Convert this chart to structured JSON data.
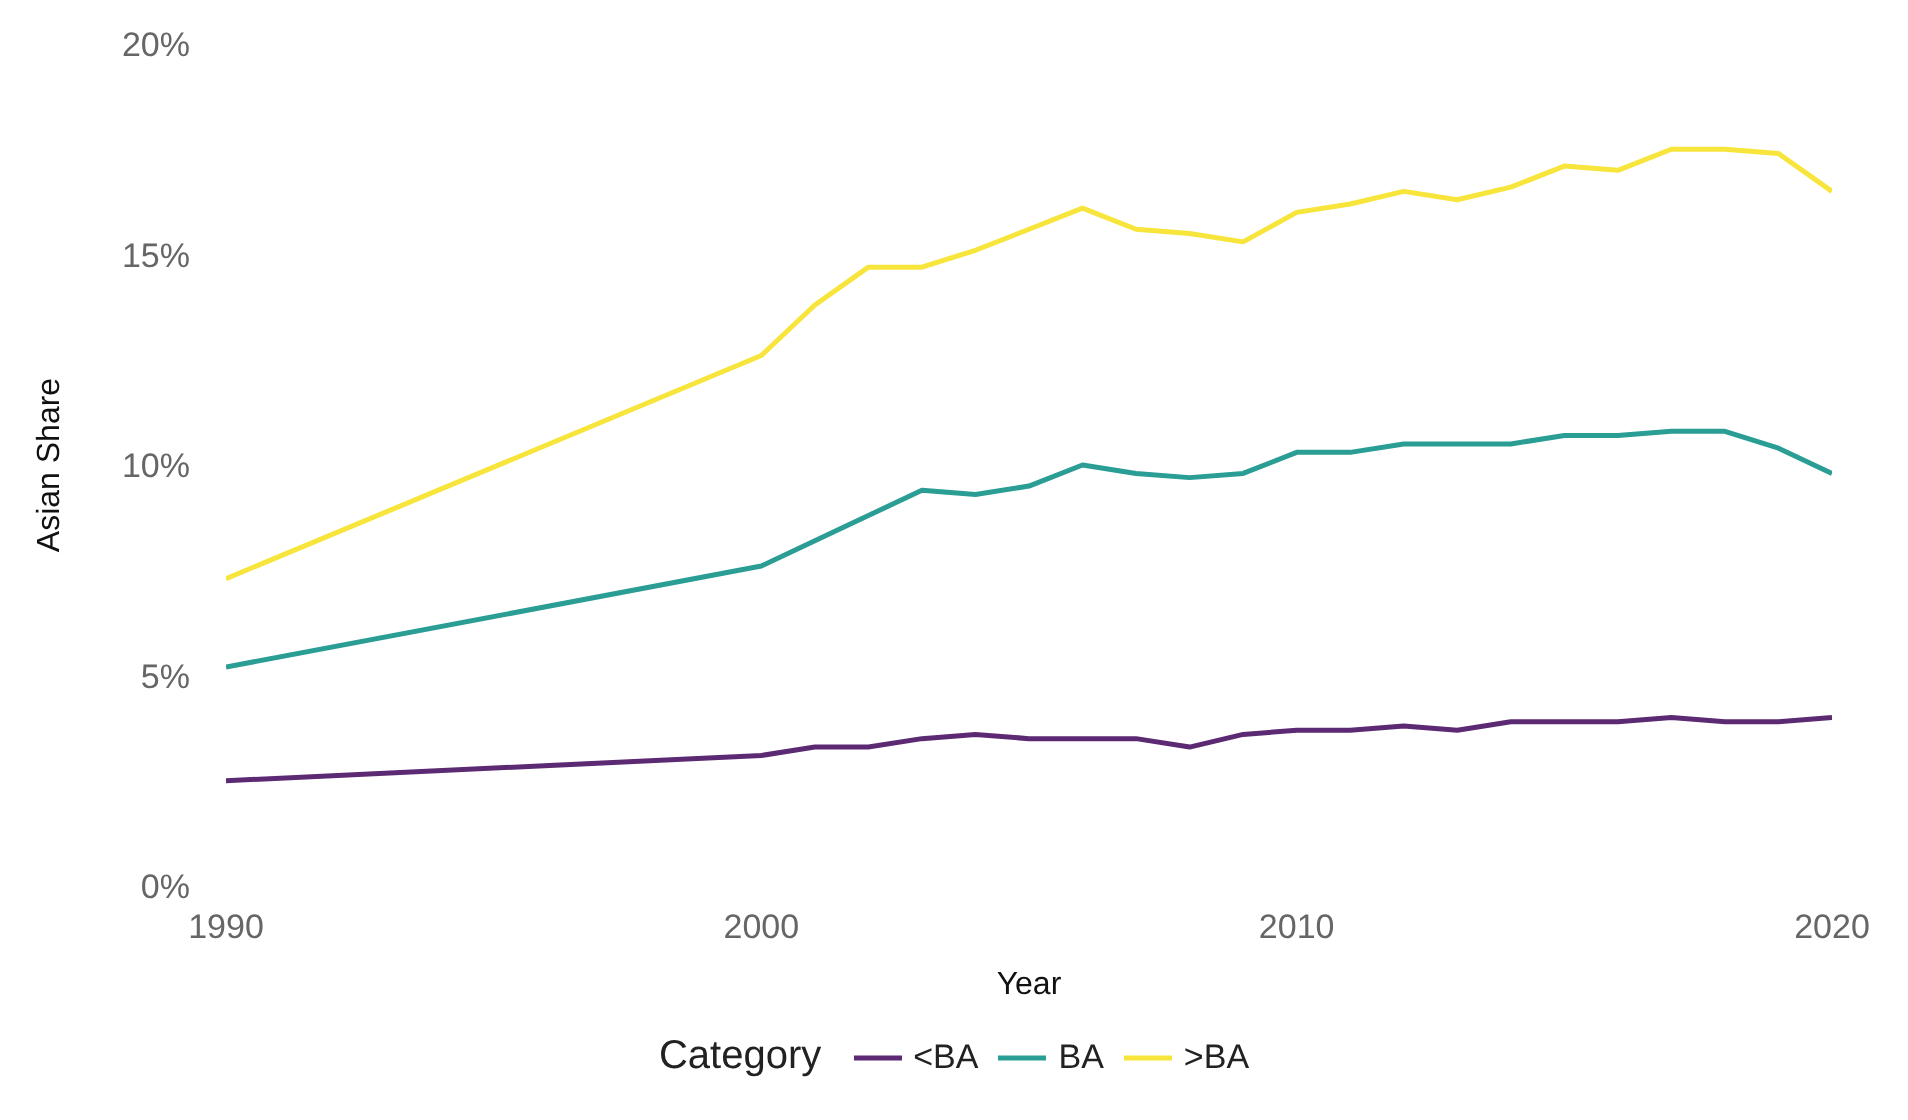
{
  "chart_data": {
    "type": "line",
    "xlabel": "Year",
    "ylabel": "Asian Share",
    "legend_title": "Category",
    "legend": "bottom",
    "grid": false,
    "line_style": "solid",
    "marker": "none",
    "x": [
      1990,
      2000,
      2001,
      2002,
      2003,
      2004,
      2005,
      2006,
      2007,
      2008,
      2009,
      2010,
      2011,
      2012,
      2013,
      2014,
      2015,
      2016,
      2017,
      2018,
      2019,
      2020
    ],
    "xlim": [
      1990,
      2020
    ],
    "xticks": [
      1990,
      2000,
      2010,
      2020
    ],
    "ylim": [
      0,
      20
    ],
    "yticks": [
      {
        "value": 0,
        "label": "0%"
      },
      {
        "value": 5,
        "label": "5%"
      },
      {
        "value": 10,
        "label": "10%"
      },
      {
        "value": 15,
        "label": "15%"
      },
      {
        "value": 20,
        "label": "20%"
      }
    ],
    "series": [
      {
        "name": "<BA",
        "color": "#5c2a73",
        "values": [
          2.5,
          3.1,
          3.3,
          3.3,
          3.5,
          3.6,
          3.5,
          3.5,
          3.5,
          3.3,
          3.6,
          3.7,
          3.7,
          3.8,
          3.7,
          3.9,
          3.9,
          3.9,
          4.0,
          3.9,
          3.9,
          4.0
        ]
      },
      {
        "name": "BA",
        "color": "#2a9d94",
        "values": [
          5.2,
          7.6,
          8.2,
          8.8,
          9.4,
          9.3,
          9.5,
          10.0,
          9.8,
          9.7,
          9.8,
          10.3,
          10.3,
          10.5,
          10.5,
          10.5,
          10.7,
          10.7,
          10.8,
          10.8,
          10.4,
          9.8
        ]
      },
      {
        "name": ">BA",
        "color": "#f7e53b",
        "values": [
          7.3,
          12.6,
          13.8,
          14.7,
          14.7,
          15.1,
          15.6,
          16.1,
          15.6,
          15.5,
          15.3,
          16.0,
          16.2,
          16.5,
          16.3,
          16.6,
          17.1,
          17.0,
          17.5,
          17.5,
          17.4,
          16.5
        ]
      }
    ]
  }
}
